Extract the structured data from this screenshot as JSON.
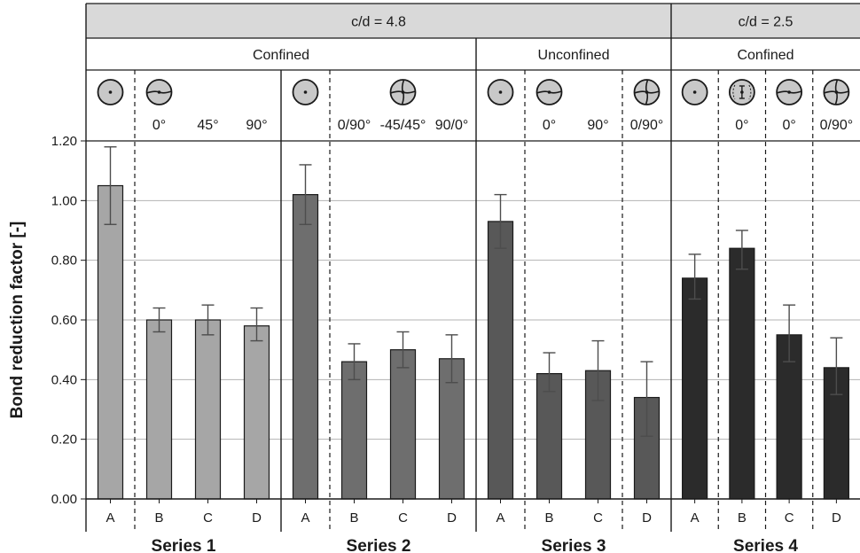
{
  "chart_data": {
    "type": "bar",
    "ylabel": "Bond reduction factor [-]",
    "ylim": [
      0,
      1.2
    ],
    "yticks": [
      "0.00",
      "0.20",
      "0.40",
      "0.60",
      "0.80",
      "1.00",
      "1.20"
    ],
    "grid": true,
    "header_row1": [
      {
        "label": "c/d = 4.8",
        "groups": [
          0,
          1,
          2
        ]
      },
      {
        "label": "c/d = 2.5",
        "groups": [
          3
        ]
      }
    ],
    "header_row2": [
      {
        "label": "Confined",
        "groups": [
          0,
          1
        ]
      },
      {
        "label": "Unconfined",
        "groups": [
          2
        ]
      },
      {
        "label": "Confined",
        "groups": [
          3
        ]
      }
    ],
    "groups": [
      {
        "name": "Series 1",
        "color": "#a6a6a6",
        "bars": [
          {
            "category": "A",
            "value": 1.05,
            "err_low": 0.92,
            "err_high": 1.18,
            "angle": "",
            "icon": "plain"
          },
          {
            "category": "B",
            "value": 0.6,
            "err_low": 0.56,
            "err_high": 0.64,
            "angle": "0°",
            "icon": "split-h"
          },
          {
            "category": "C",
            "value": 0.6,
            "err_low": 0.55,
            "err_high": 0.65,
            "angle": "45°",
            "icon": ""
          },
          {
            "category": "D",
            "value": 0.58,
            "err_low": 0.53,
            "err_high": 0.64,
            "angle": "90°",
            "icon": ""
          }
        ]
      },
      {
        "name": "Series 2",
        "color": "#6e6e6e",
        "bars": [
          {
            "category": "A",
            "value": 1.02,
            "err_low": 0.92,
            "err_high": 1.12,
            "angle": "",
            "icon": "plain"
          },
          {
            "category": "B",
            "value": 0.46,
            "err_low": 0.4,
            "err_high": 0.52,
            "angle": "0/90°",
            "icon": ""
          },
          {
            "category": "C",
            "value": 0.5,
            "err_low": 0.44,
            "err_high": 0.56,
            "angle": "-45/45°",
            "icon": "cross"
          },
          {
            "category": "D",
            "value": 0.47,
            "err_low": 0.39,
            "err_high": 0.55,
            "angle": "90/0°",
            "icon": ""
          }
        ]
      },
      {
        "name": "Series 3",
        "color": "#585858",
        "bars": [
          {
            "category": "A",
            "value": 0.93,
            "err_low": 0.84,
            "err_high": 1.02,
            "angle": "",
            "icon": "plain"
          },
          {
            "category": "B",
            "value": 0.42,
            "err_low": 0.36,
            "err_high": 0.49,
            "angle": "0°",
            "icon": "split-h"
          },
          {
            "category": "C",
            "value": 0.43,
            "err_low": 0.33,
            "err_high": 0.53,
            "angle": "90°",
            "icon": ""
          },
          {
            "category": "D",
            "value": 0.34,
            "err_low": 0.21,
            "err_high": 0.46,
            "angle": "0/90°",
            "icon": "cross"
          }
        ]
      },
      {
        "name": "Series 4",
        "color": "#2b2b2b",
        "bars": [
          {
            "category": "A",
            "value": 0.74,
            "err_low": 0.67,
            "err_high": 0.82,
            "angle": "",
            "icon": "plain"
          },
          {
            "category": "B",
            "value": 0.84,
            "err_low": 0.77,
            "err_high": 0.9,
            "angle": "0°",
            "icon": "vertical"
          },
          {
            "category": "C",
            "value": 0.55,
            "err_low": 0.46,
            "err_high": 0.65,
            "angle": "0°",
            "icon": "split-h"
          },
          {
            "category": "D",
            "value": 0.44,
            "err_low": 0.35,
            "err_high": 0.54,
            "angle": "0/90°",
            "icon": "cross"
          }
        ]
      }
    ]
  }
}
